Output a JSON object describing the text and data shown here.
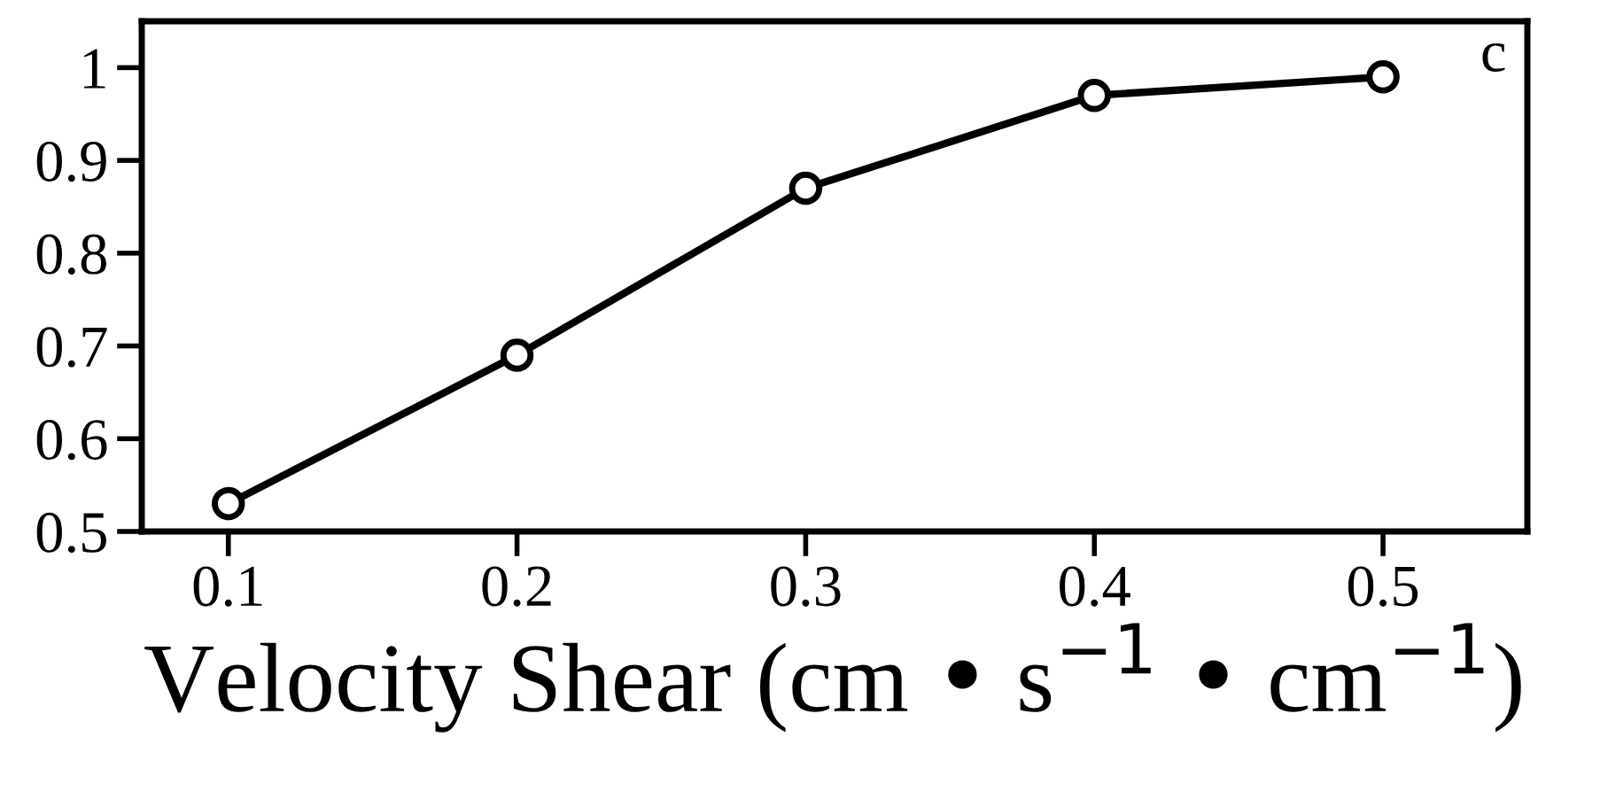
{
  "chart_data": {
    "type": "line",
    "x": [
      0.1,
      0.2,
      0.3,
      0.4,
      0.5
    ],
    "series": [
      {
        "color": "#000000",
        "values": [
          0.53,
          0.69,
          0.87,
          0.97,
          0.99
        ]
      }
    ],
    "xlabel": "Velocity Shear (cm • s$^{−1}$ • cm$^{−1}$)",
    "annotations": [
      "c"
    ],
    "xlim": [
      0.07,
      0.55
    ],
    "ylim": [
      0.5,
      1.05
    ],
    "xticks": [
      0.1,
      0.2,
      0.3,
      0.4,
      0.5
    ],
    "yticks": [
      0.5,
      0.6,
      0.7,
      0.8,
      0.9,
      1
    ],
    "marker": "circle",
    "line_style": "solid",
    "grid": false,
    "legend": false
  }
}
